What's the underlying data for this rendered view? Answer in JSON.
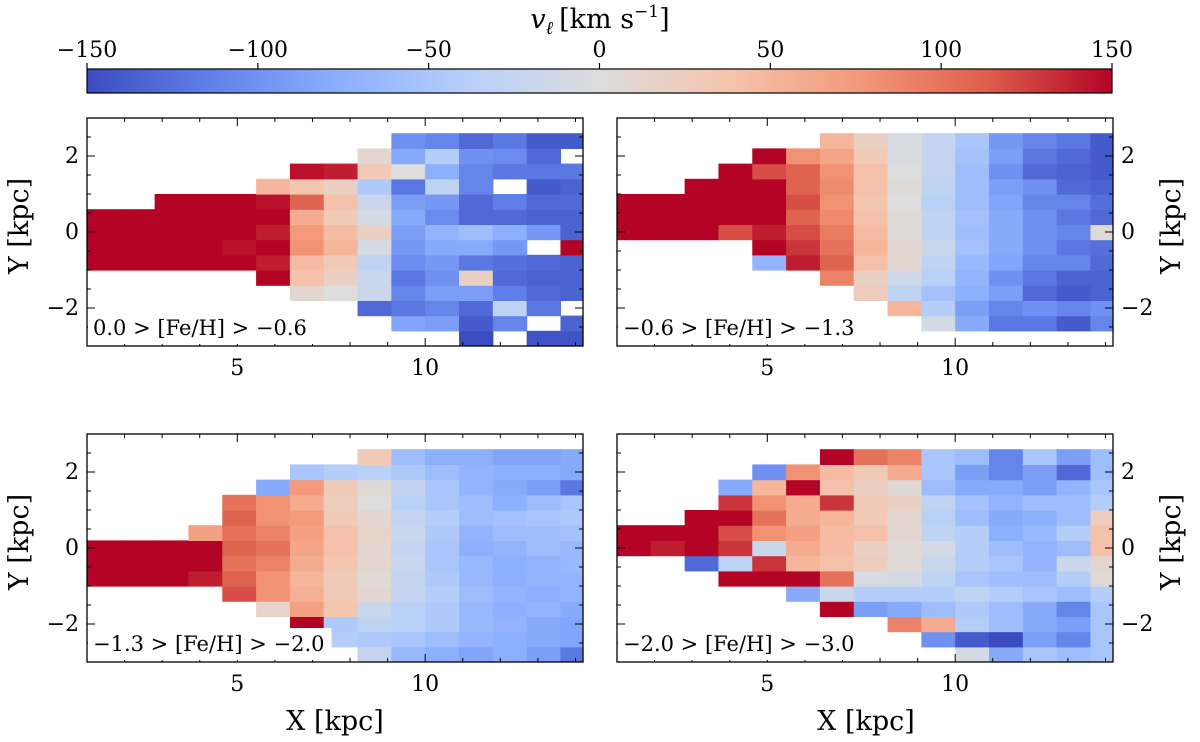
{
  "chart_data": {
    "type": "heatmap",
    "colorbar": {
      "label": "v_ℓ [km s^-1]",
      "label_main": "v",
      "label_sub": "ℓ",
      "label_units": "[km s",
      "label_exp": "−1",
      "label_close": "]",
      "range": [
        -150,
        150
      ],
      "ticks": [
        -150,
        -100,
        -50,
        0,
        50,
        100,
        150
      ],
      "tick_labels": [
        "−150",
        "−100",
        "−50",
        "0",
        "50",
        "100",
        "150"
      ],
      "colormap": "coolwarm",
      "location": "top"
    },
    "xlabel": "X [kpc]",
    "ylabel": "Y [kpc]",
    "xlim": [
      1.0,
      14.2
    ],
    "ylim": [
      -3.0,
      3.0
    ],
    "xticks": [
      5,
      10
    ],
    "yticks": [
      -2,
      0,
      2
    ],
    "ytick_labels": [
      "−2",
      "0",
      "2"
    ],
    "grid": {
      "x0": 1.0,
      "dx": 0.9,
      "y0": -3.0,
      "dy": 0.4,
      "ncols": 15,
      "nrows": 15
    },
    "panels": [
      {
        "label": "0.0 > [Fe/H] > −0.6",
        "rows": [
          [
            null,
            null,
            null,
            null,
            null,
            null,
            null,
            null,
            null,
            null,
            null,
            -150,
            null,
            -145,
            -145
          ],
          [
            null,
            null,
            null,
            null,
            null,
            null,
            null,
            null,
            null,
            -85,
            -90,
            -140,
            -110,
            null,
            -135
          ],
          [
            null,
            null,
            null,
            null,
            null,
            null,
            null,
            null,
            -130,
            -120,
            -110,
            -130,
            -30,
            -120,
            null
          ],
          [
            null,
            null,
            null,
            null,
            null,
            null,
            10,
            0,
            -20,
            -110,
            -90,
            -90,
            -115,
            -130,
            -135
          ],
          [
            null,
            null,
            null,
            null,
            null,
            150,
            40,
            20,
            -20,
            -120,
            -100,
            20,
            -130,
            -135,
            -135
          ],
          [
            150,
            150,
            150,
            150,
            150,
            140,
            45,
            30,
            -30,
            -105,
            -95,
            -120,
            -125,
            -130,
            -135
          ],
          [
            150,
            150,
            150,
            150,
            145,
            150,
            80,
            50,
            -10,
            -95,
            -80,
            -80,
            -95,
            null,
            150
          ],
          [
            150,
            150,
            150,
            150,
            150,
            140,
            75,
            45,
            20,
            -90,
            -70,
            -60,
            -75,
            -95,
            -135
          ],
          [
            150,
            150,
            150,
            150,
            150,
            150,
            60,
            30,
            -10,
            -80,
            -105,
            -130,
            -130,
            -135,
            -135
          ],
          [
            null,
            null,
            150,
            150,
            150,
            145,
            110,
            40,
            -20,
            -90,
            -95,
            -130,
            -115,
            -130,
            -130
          ],
          [
            null,
            null,
            null,
            null,
            null,
            50,
            35,
            20,
            -45,
            -120,
            -30,
            -110,
            null,
            -140,
            -135
          ],
          [
            null,
            null,
            null,
            null,
            null,
            null,
            145,
            140,
            30,
            0,
            -75,
            -110,
            -120,
            -120,
            -120
          ],
          [
            null,
            null,
            null,
            null,
            null,
            null,
            null,
            null,
            10,
            -80,
            -40,
            -100,
            -105,
            -130,
            null
          ],
          [
            null,
            null,
            null,
            null,
            null,
            null,
            null,
            null,
            null,
            -100,
            -110,
            -130,
            -120,
            -140,
            -140
          ],
          [
            null,
            null,
            null,
            null,
            null,
            null,
            null,
            null,
            null,
            null,
            null,
            null,
            null,
            null,
            null
          ]
        ]
      },
      {
        "label": "−0.6 > [Fe/H] > −1.3",
        "rows": [
          [
            null,
            null,
            null,
            null,
            null,
            null,
            null,
            null,
            null,
            null,
            null,
            null,
            null,
            null,
            null
          ],
          [
            null,
            null,
            null,
            null,
            null,
            null,
            null,
            null,
            null,
            -10,
            -80,
            -120,
            -120,
            -140,
            -110
          ],
          [
            null,
            null,
            null,
            null,
            null,
            null,
            null,
            null,
            50,
            -40,
            -90,
            -110,
            -100,
            -110,
            -100
          ],
          [
            null,
            null,
            null,
            null,
            null,
            null,
            null,
            25,
            -30,
            -55,
            -75,
            -90,
            -130,
            -140,
            -135
          ],
          [
            null,
            null,
            null,
            null,
            null,
            null,
            90,
            20,
            -15,
            -35,
            -70,
            -100,
            -120,
            -135,
            -135
          ],
          [
            null,
            null,
            null,
            null,
            -70,
            140,
            110,
            40,
            10,
            -30,
            -65,
            -85,
            -110,
            -110,
            -130
          ],
          [
            null,
            null,
            null,
            null,
            150,
            130,
            100,
            50,
            10,
            -20,
            -55,
            -80,
            -100,
            -120,
            -125
          ],
          [
            150,
            150,
            150,
            120,
            140,
            120,
            95,
            45,
            5,
            -30,
            -60,
            -80,
            -100,
            -110,
            5
          ],
          [
            150,
            150,
            150,
            150,
            150,
            110,
            85,
            40,
            5,
            -30,
            -55,
            -80,
            -100,
            -120,
            -130
          ],
          [
            150,
            150,
            150,
            150,
            150,
            120,
            80,
            35,
            0,
            -35,
            -60,
            -85,
            -110,
            -110,
            -125
          ],
          [
            null,
            null,
            150,
            150,
            150,
            110,
            85,
            40,
            5,
            -30,
            -60,
            -90,
            -100,
            -130,
            -135
          ],
          [
            null,
            null,
            null,
            150,
            120,
            110,
            80,
            40,
            0,
            -25,
            -60,
            -100,
            -130,
            -135,
            -140
          ],
          [
            null,
            null,
            null,
            null,
            150,
            80,
            65,
            30,
            -5,
            -25,
            -55,
            -90,
            -120,
            -130,
            -140
          ],
          [
            null,
            null,
            null,
            null,
            null,
            null,
            50,
            20,
            -5,
            -25,
            -50,
            -95,
            -110,
            -120,
            -140
          ],
          [
            null,
            null,
            null,
            null,
            null,
            null,
            null,
            null,
            null,
            null,
            null,
            null,
            null,
            null,
            null
          ]
        ]
      },
      {
        "label": "−1.3 > [Fe/H] > −2.0",
        "rows": [
          [
            null,
            null,
            null,
            null,
            null,
            null,
            null,
            null,
            -25,
            -65,
            -75,
            -85,
            -75,
            -90,
            -120
          ],
          [
            null,
            null,
            null,
            null,
            null,
            null,
            null,
            -40,
            -45,
            -50,
            -60,
            -70,
            -75,
            -80,
            -85
          ],
          [
            null,
            null,
            null,
            null,
            null,
            null,
            150,
            -45,
            -30,
            -35,
            -45,
            -65,
            -70,
            -80,
            -85
          ],
          [
            null,
            null,
            null,
            null,
            null,
            15,
            70,
            35,
            -20,
            -35,
            -45,
            -65,
            -75,
            -70,
            -80
          ],
          [
            null,
            null,
            null,
            null,
            120,
            80,
            55,
            30,
            10,
            -25,
            -40,
            -60,
            -70,
            -75,
            -70
          ],
          [
            150,
            150,
            150,
            140,
            110,
            80,
            50,
            30,
            5,
            -25,
            -45,
            -65,
            -75,
            -70,
            -70
          ],
          [
            150,
            150,
            150,
            150,
            100,
            90,
            60,
            35,
            10,
            -20,
            -50,
            -65,
            -75,
            -70,
            -65
          ],
          [
            150,
            150,
            150,
            150,
            110,
            100,
            65,
            40,
            10,
            -25,
            -50,
            -75,
            -70,
            -60,
            -65
          ],
          [
            null,
            null,
            null,
            70,
            100,
            90,
            70,
            40,
            15,
            -20,
            -45,
            -70,
            -60,
            -60,
            -55
          ],
          [
            null,
            null,
            null,
            null,
            110,
            80,
            75,
            30,
            10,
            -25,
            -40,
            -60,
            -55,
            -50,
            -45
          ],
          [
            null,
            null,
            null,
            null,
            100,
            80,
            60,
            25,
            0,
            -35,
            -50,
            -60,
            -75,
            -60,
            -50
          ],
          [
            null,
            null,
            null,
            null,
            null,
            -80,
            75,
            30,
            5,
            -25,
            -50,
            -70,
            -80,
            -90,
            -120
          ],
          [
            null,
            null,
            null,
            null,
            null,
            null,
            -50,
            -40,
            -35,
            -45,
            -60,
            -70,
            -75,
            -75,
            -80
          ],
          [
            null,
            null,
            null,
            null,
            null,
            null,
            null,
            null,
            30,
            -60,
            -75,
            -75,
            -85,
            -85,
            -80
          ],
          [
            null,
            null,
            null,
            null,
            null,
            null,
            null,
            null,
            null,
            null,
            null,
            null,
            null,
            null,
            null
          ]
        ]
      },
      {
        "label": "−2.0 > [Fe/H] > −3.0",
        "rows": [
          [
            null,
            null,
            null,
            null,
            null,
            null,
            null,
            null,
            null,
            null,
            -10,
            -80,
            -50,
            -60,
            -50
          ],
          [
            null,
            null,
            null,
            null,
            null,
            null,
            null,
            null,
            null,
            -100,
            -140,
            -150,
            -90,
            -110,
            -50
          ],
          [
            null,
            null,
            null,
            null,
            null,
            null,
            null,
            null,
            90,
            60,
            -40,
            -60,
            -80,
            -90,
            -50
          ],
          [
            null,
            null,
            null,
            null,
            null,
            null,
            150,
            -90,
            -80,
            -60,
            -45,
            -60,
            -80,
            -110,
            -50
          ],
          [
            null,
            null,
            null,
            null,
            null,
            -80,
            -20,
            -40,
            -40,
            -40,
            -30,
            -40,
            -50,
            -60,
            -40
          ],
          [
            null,
            null,
            null,
            150,
            150,
            150,
            100,
            -5,
            -10,
            -30,
            -50,
            -60,
            -60,
            -40,
            5
          ],
          [
            null,
            null,
            -130,
            -30,
            130,
            50,
            40,
            25,
            5,
            -20,
            -40,
            -50,
            -70,
            -20,
            10
          ],
          [
            150,
            140,
            150,
            130,
            -20,
            60,
            45,
            20,
            5,
            -10,
            -40,
            -60,
            -70,
            -60,
            40
          ],
          [
            150,
            150,
            150,
            120,
            80,
            70,
            45,
            40,
            10,
            -30,
            -40,
            -75,
            -65,
            -40,
            40
          ],
          [
            null,
            null,
            150,
            150,
            100,
            60,
            50,
            30,
            10,
            -35,
            -60,
            -80,
            -75,
            -60,
            25
          ],
          [
            null,
            null,
            null,
            130,
            80,
            60,
            130,
            30,
            20,
            -30,
            -55,
            -70,
            -60,
            -60,
            -40
          ],
          [
            null,
            null,
            null,
            -80,
            50,
            150,
            40,
            20,
            5,
            -60,
            -80,
            -80,
            -90,
            -70,
            -50
          ],
          [
            null,
            null,
            null,
            null,
            -100,
            80,
            45,
            30,
            60,
            -50,
            -90,
            -110,
            -90,
            -130,
            -60
          ],
          [
            null,
            null,
            null,
            null,
            null,
            null,
            150,
            100,
            90,
            -50,
            -60,
            -110,
            -50,
            -90,
            -60
          ],
          [
            null,
            null,
            null,
            null,
            null,
            null,
            null,
            null,
            null,
            null,
            null,
            null,
            null,
            null,
            null
          ]
        ]
      }
    ]
  }
}
